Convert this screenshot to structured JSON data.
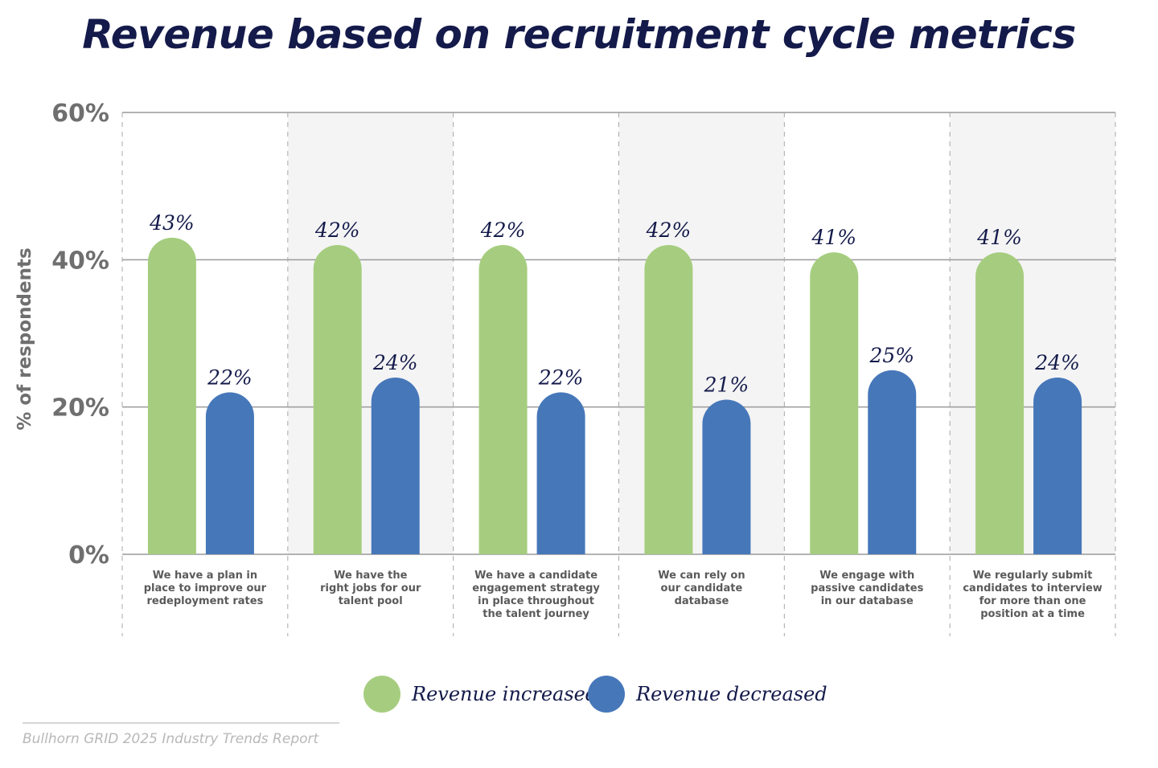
{
  "chart_data": {
    "type": "bar",
    "title": "Revenue based on recruitment cycle metrics",
    "ylabel": "% of respondents",
    "xlabel": "",
    "ylim": [
      0,
      60
    ],
    "yticks": [
      "0%",
      "20%",
      "40%",
      "60%"
    ],
    "ytick_values": [
      0,
      20,
      40,
      60
    ],
    "grid": true,
    "legend_position": "bottom",
    "categories": [
      [
        "We have a plan in",
        "place to improve our",
        "redeployment rates"
      ],
      [
        "We have the",
        "right jobs for our",
        "talent pool"
      ],
      [
        "We have a candidate",
        "engagement strategy",
        "in place throughout",
        "the talent journey"
      ],
      [
        "We can rely on",
        "our candidate",
        "database"
      ],
      [
        "We engage with",
        "passive candidates",
        "in our database"
      ],
      [
        "We regularly submit",
        "candidates to interview",
        "for more than one",
        "position at a time"
      ]
    ],
    "series": [
      {
        "name": "Revenue increased",
        "color": "#a6cd7f",
        "values": [
          43,
          42,
          42,
          42,
          41,
          41
        ],
        "labels": [
          "43%",
          "42%",
          "42%",
          "42%",
          "41%",
          "41%"
        ]
      },
      {
        "name": "Revenue decreased",
        "color": "#4677b9",
        "values": [
          22,
          24,
          22,
          21,
          25,
          24
        ],
        "labels": [
          "22%",
          "24%",
          "22%",
          "21%",
          "25%",
          "24%"
        ]
      }
    ]
  },
  "source": "Bullhorn GRID 2025 Industry Trends Report"
}
